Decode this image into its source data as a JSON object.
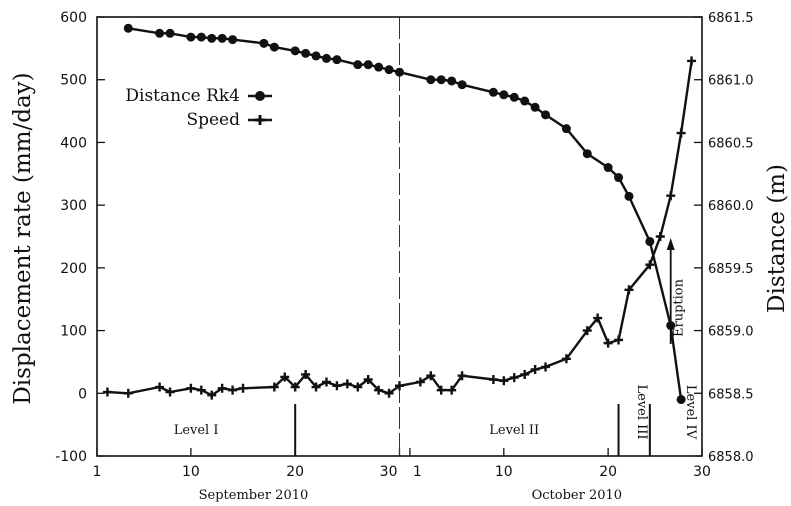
{
  "chart_data": {
    "type": "line",
    "ylabel_left": "Displacement rate (mm/day)",
    "ylabel_right": "Distance (m)",
    "y_left": {
      "lim": [
        -100,
        600
      ],
      "ticks": [
        "-100",
        "0",
        "100",
        "200",
        "300",
        "400",
        "500",
        "600"
      ]
    },
    "y_right": {
      "lim": [
        6858.0,
        6861.5
      ],
      "ticks": [
        "6858.0",
        "6858.5",
        "6859.0",
        "6859.5",
        "6860.0",
        "6860.5",
        "6861.0",
        "6861.5"
      ]
    },
    "x": {
      "tick_labels": [
        "1",
        "10",
        "20",
        "30",
        "1",
        "10",
        "20",
        "30"
      ],
      "months": [
        "September 2010",
        "October 2010"
      ]
    },
    "grid": false,
    "legend_position": "upper-left",
    "series": [
      {
        "name": "Distance Rk4",
        "axis": "right",
        "marker": "circle",
        "x": [
          "2010-09-04",
          "2010-09-07",
          "2010-09-08",
          "2010-09-10",
          "2010-09-11",
          "2010-09-12",
          "2010-09-13",
          "2010-09-14",
          "2010-09-17",
          "2010-09-18",
          "2010-09-20",
          "2010-09-21",
          "2010-09-22",
          "2010-09-23",
          "2010-09-24",
          "2010-09-26",
          "2010-09-27",
          "2010-09-28",
          "2010-09-29",
          "2010-09-30",
          "2010-10-03",
          "2010-10-04",
          "2010-10-05",
          "2010-10-06",
          "2010-10-09",
          "2010-10-10",
          "2010-10-11",
          "2010-10-12",
          "2010-10-13",
          "2010-10-14",
          "2010-10-16",
          "2010-10-18",
          "2010-10-20",
          "2010-10-21",
          "2010-10-22",
          "2010-10-24",
          "2010-10-26",
          "2010-10-27"
        ],
        "values": [
          6861.41,
          6861.37,
          6861.37,
          6861.34,
          6861.34,
          6861.33,
          6861.33,
          6861.32,
          6861.29,
          6861.26,
          6861.23,
          6861.21,
          6861.19,
          6861.17,
          6861.16,
          6861.12,
          6861.12,
          6861.1,
          6861.08,
          6861.06,
          6861.0,
          6861.0,
          6860.99,
          6860.96,
          6860.9,
          6860.88,
          6860.86,
          6860.83,
          6860.78,
          6860.72,
          6860.61,
          6860.41,
          6860.3,
          6860.22,
          6860.07,
          6859.71,
          6859.04,
          6858.45
        ]
      },
      {
        "name": "Speed",
        "axis": "left",
        "marker": "plus",
        "x": [
          "2010-09-02",
          "2010-09-04",
          "2010-09-07",
          "2010-09-08",
          "2010-09-10",
          "2010-09-11",
          "2010-09-12",
          "2010-09-13",
          "2010-09-14",
          "2010-09-15",
          "2010-09-18",
          "2010-09-19",
          "2010-09-20",
          "2010-09-21",
          "2010-09-22",
          "2010-09-23",
          "2010-09-24",
          "2010-09-25",
          "2010-09-26",
          "2010-09-27",
          "2010-09-28",
          "2010-09-29",
          "2010-09-30",
          "2010-10-02",
          "2010-10-03",
          "2010-10-04",
          "2010-10-05",
          "2010-10-06",
          "2010-10-09",
          "2010-10-10",
          "2010-10-11",
          "2010-10-12",
          "2010-10-13",
          "2010-10-14",
          "2010-10-16",
          "2010-10-18",
          "2010-10-19",
          "2010-10-20",
          "2010-10-21",
          "2010-10-22",
          "2010-10-24",
          "2010-10-25",
          "2010-10-26",
          "2010-10-27",
          "2010-10-28"
        ],
        "values": [
          2,
          0,
          10,
          2,
          8,
          5,
          -3,
          8,
          5,
          8,
          10,
          26,
          10,
          30,
          10,
          18,
          12,
          15,
          10,
          22,
          5,
          0,
          12,
          18,
          28,
          5,
          5,
          28,
          22,
          20,
          25,
          30,
          38,
          42,
          55,
          100,
          120,
          80,
          85,
          165,
          205,
          250,
          315,
          415,
          530
        ]
      }
    ],
    "annotations": {
      "levels": [
        "Level I",
        "Level II",
        "Level III",
        "Level IV"
      ],
      "eruption": "Eruption"
    }
  }
}
